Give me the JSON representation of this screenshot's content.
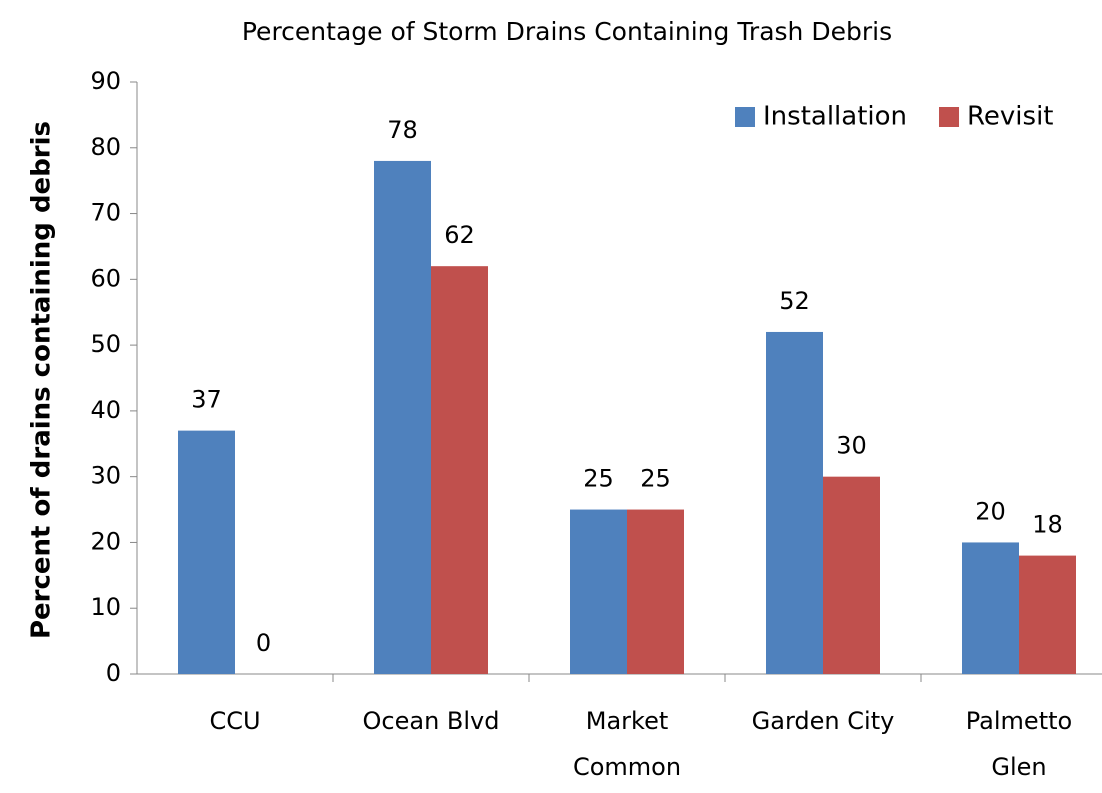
{
  "chart_data": {
    "type": "bar",
    "title": "Percentage of Storm Drains Containing Trash Debris",
    "y_label": "Percent of drains containing debris",
    "categories": [
      "CCU",
      "Ocean Blvd",
      "Market\nCommon",
      "Garden City",
      "Palmetto\nGlen"
    ],
    "series": [
      {
        "name": "Installation",
        "color": "#4f81bd",
        "values": [
          37,
          78,
          25,
          52,
          20
        ]
      },
      {
        "name": "Revisit",
        "color": "#c0504d",
        "values": [
          0,
          62,
          25,
          30,
          18
        ]
      }
    ],
    "ylim": [
      0,
      90
    ],
    "yticks": [
      0,
      10,
      20,
      30,
      40,
      50,
      60,
      70,
      80,
      90
    ],
    "legend": "top-right",
    "grid": false
  }
}
